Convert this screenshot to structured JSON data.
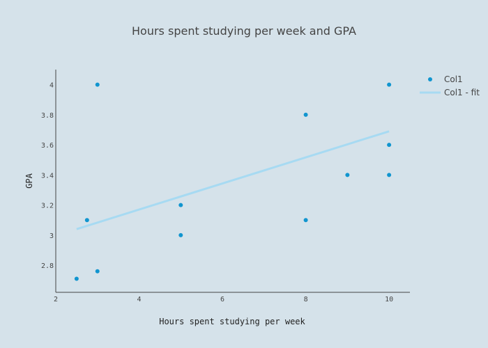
{
  "chart_data": {
    "type": "scatter",
    "title": "Hours spent studying per week and GPA",
    "xlabel": "Hours spent studying per week",
    "ylabel": "GPA",
    "xlim": [
      2,
      10.5
    ],
    "ylim": [
      2.62,
      4.1
    ],
    "xticks": [
      2,
      4,
      6,
      8,
      10
    ],
    "xtick_labels": [
      "2",
      "4",
      "6",
      "8",
      "10"
    ],
    "yticks": [
      2.8,
      3,
      3.2,
      3.4,
      3.6,
      3.8,
      4
    ],
    "ytick_labels": [
      "2.8",
      "3",
      "3.2",
      "3.4",
      "3.6",
      "3.8",
      "4"
    ],
    "grid": false,
    "legend_placement": "top-right",
    "series": [
      {
        "name": "Col1",
        "mode": "markers",
        "color": "#1195cf",
        "x": [
          2.5,
          2.75,
          3,
          3,
          5,
          5,
          8,
          8,
          9,
          10,
          10,
          10
        ],
        "y": [
          2.71,
          3.1,
          4.0,
          2.76,
          3.2,
          3.0,
          3.8,
          3.1,
          3.4,
          4.0,
          3.6,
          3.4
        ]
      },
      {
        "name": "Col1 - fit",
        "mode": "line",
        "color": "#a7daf2",
        "x": [
          2.5,
          10
        ],
        "y": [
          3.04,
          3.69
        ]
      }
    ]
  }
}
